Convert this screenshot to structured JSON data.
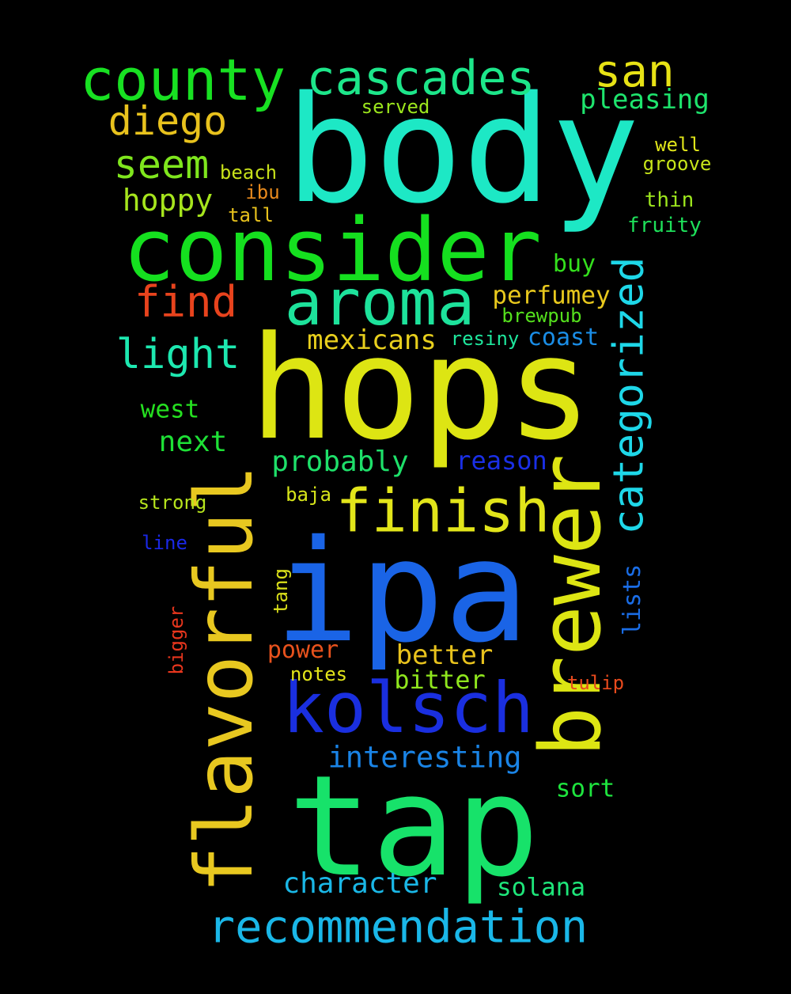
{
  "words": [
    {
      "text": "body",
      "color": "#1de8c5"
    },
    {
      "text": "hops",
      "color": "#dde513"
    },
    {
      "text": "ipa",
      "color": "#1a64e6"
    },
    {
      "text": "tap",
      "color": "#17e26a"
    },
    {
      "text": "consider",
      "color": "#15e01f"
    },
    {
      "text": "brewer",
      "color": "#dde513"
    },
    {
      "text": "flavorful",
      "color": "#e8c820"
    },
    {
      "text": "kolsch",
      "color": "#1a2fe0"
    },
    {
      "text": "aroma",
      "color": "#1de29b"
    },
    {
      "text": "finish",
      "color": "#e2e51a"
    },
    {
      "text": "county",
      "color": "#18e122"
    },
    {
      "text": "cascades",
      "color": "#1de68a"
    },
    {
      "text": "recommendation",
      "color": "#1ab7e8"
    },
    {
      "text": "categorized",
      "color": "#1ed7e8"
    },
    {
      "text": "san",
      "color": "#e7e215"
    },
    {
      "text": "find",
      "color": "#e8431d"
    },
    {
      "text": "light",
      "color": "#1de8b0"
    },
    {
      "text": "seem",
      "color": "#7fe61d"
    },
    {
      "text": "diego",
      "color": "#e8c21d"
    },
    {
      "text": "hoppy",
      "color": "#a6e51d"
    },
    {
      "text": "pleasing",
      "color": "#1ee46d"
    },
    {
      "text": "probably",
      "color": "#1ee06a"
    },
    {
      "text": "interesting",
      "color": "#1a84e6"
    },
    {
      "text": "character",
      "color": "#1ab7e6"
    },
    {
      "text": "mexicans",
      "color": "#e8cf1d"
    },
    {
      "text": "perfumey",
      "color": "#e8c81d"
    },
    {
      "text": "next",
      "color": "#1ee036"
    },
    {
      "text": "better",
      "color": "#e8c21d"
    },
    {
      "text": "bitter",
      "color": "#8fe61d"
    },
    {
      "text": "reason",
      "color": "#1a2fe6"
    },
    {
      "text": "west",
      "color": "#25e020"
    },
    {
      "text": "solana",
      "color": "#1ee67a"
    },
    {
      "text": "sort",
      "color": "#1ee43e"
    },
    {
      "text": "power",
      "color": "#e8521d"
    },
    {
      "text": "buy",
      "color": "#34e01d"
    },
    {
      "text": "coast",
      "color": "#1a8de6"
    },
    {
      "text": "served",
      "color": "#9ce61d"
    },
    {
      "text": "well",
      "color": "#e0e51a"
    },
    {
      "text": "groove",
      "color": "#c7e51a"
    },
    {
      "text": "beach",
      "color": "#c7e01a"
    },
    {
      "text": "ibu",
      "color": "#e88a1d"
    },
    {
      "text": "tall",
      "color": "#e8c21d"
    },
    {
      "text": "thin",
      "color": "#9de61d"
    },
    {
      "text": "fruity",
      "color": "#1ee05a"
    },
    {
      "text": "brewpub",
      "color": "#55e01d"
    },
    {
      "text": "resiny",
      "color": "#1ee69c"
    },
    {
      "text": "strong",
      "color": "#b7e51d"
    },
    {
      "text": "baja",
      "color": "#d7e51a"
    },
    {
      "text": "line",
      "color": "#1a28e6"
    },
    {
      "text": "tang",
      "color": "#dbe01a"
    },
    {
      "text": "bigger",
      "color": "#e8361d"
    },
    {
      "text": "notes",
      "color": "#e2e51a"
    },
    {
      "text": "tulip",
      "color": "#e84a1d"
    },
    {
      "text": "lists",
      "color": "#1a6de6"
    }
  ]
}
